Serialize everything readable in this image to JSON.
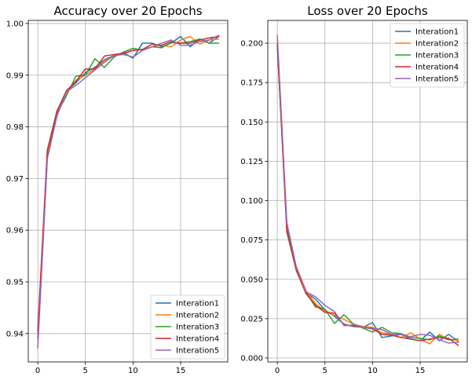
{
  "chart_data": [
    {
      "type": "line",
      "title": "Accuracy over 20 Epochs",
      "xlabel": "",
      "ylabel": "",
      "xlim": [
        -1,
        19.95
      ],
      "ylim": [
        0.9345,
        1.0006
      ],
      "xticks": [
        0,
        5,
        10,
        15
      ],
      "yticks": [
        0.94,
        0.95,
        0.96,
        0.97,
        0.98,
        0.99,
        1.0
      ],
      "ytick_labels": [
        "0.94",
        "0.95",
        "0.96",
        "0.97",
        "0.98",
        "0.99",
        "1.00"
      ],
      "grid": true,
      "legend_position": "lower-right",
      "x": [
        0,
        1,
        2,
        3,
        4,
        5,
        6,
        7,
        8,
        9,
        10,
        11,
        12,
        13,
        14,
        15,
        16,
        17,
        18,
        19
      ],
      "series": [
        {
          "name": "Interation1",
          "color": "#1f77b4",
          "values": [
            0.939,
            0.9745,
            0.983,
            0.9868,
            0.9885,
            0.9905,
            0.9915,
            0.993,
            0.9938,
            0.9943,
            0.9933,
            0.9962,
            0.9962,
            0.9955,
            0.9962,
            0.9975,
            0.9955,
            0.997,
            0.9962,
            0.9975
          ]
        },
        {
          "name": "Interation2",
          "color": "#ff7f0e",
          "values": [
            0.94,
            0.975,
            0.9828,
            0.9865,
            0.989,
            0.99,
            0.9912,
            0.9928,
            0.9937,
            0.9943,
            0.9948,
            0.995,
            0.9955,
            0.9958,
            0.9955,
            0.9968,
            0.9975,
            0.996,
            0.9968,
            0.997
          ]
        },
        {
          "name": "Interation3",
          "color": "#2ca02c",
          "values": [
            0.9395,
            0.974,
            0.9825,
            0.986,
            0.9898,
            0.99,
            0.9932,
            0.9915,
            0.9935,
            0.9945,
            0.9952,
            0.9948,
            0.9955,
            0.9953,
            0.9963,
            0.9962,
            0.9965,
            0.997,
            0.9962,
            0.9962
          ]
        },
        {
          "name": "Interation4",
          "color": "#d62728",
          "values": [
            0.9405,
            0.9755,
            0.983,
            0.987,
            0.9888,
            0.9912,
            0.9912,
            0.9937,
            0.994,
            0.9942,
            0.9948,
            0.995,
            0.996,
            0.9958,
            0.9965,
            0.9962,
            0.9962,
            0.9968,
            0.9972,
            0.9975
          ]
        },
        {
          "name": "Interation5",
          "color": "#9467bd",
          "values": [
            0.9372,
            0.9738,
            0.982,
            0.9868,
            0.988,
            0.9895,
            0.991,
            0.9925,
            0.9938,
            0.994,
            0.9935,
            0.9948,
            0.9955,
            0.9962,
            0.9968,
            0.9958,
            0.9958,
            0.9965,
            0.9968,
            0.9977
          ]
        }
      ]
    },
    {
      "type": "line",
      "title": "Loss over 20 Epochs",
      "xlabel": "",
      "ylabel": "",
      "xlim": [
        -1,
        19.95
      ],
      "ylim": [
        -0.0025,
        0.2145
      ],
      "xticks": [
        0,
        5,
        10,
        15
      ],
      "yticks": [
        0.0,
        0.025,
        0.05,
        0.075,
        0.1,
        0.125,
        0.15,
        0.175,
        0.2
      ],
      "ytick_labels": [
        "0.000",
        "0.025",
        "0.050",
        "0.075",
        "0.100",
        "0.125",
        "0.150",
        "0.175",
        "0.200"
      ],
      "grid": true,
      "legend_position": "upper-right",
      "x": [
        0,
        1,
        2,
        3,
        4,
        5,
        6,
        7,
        8,
        9,
        10,
        11,
        12,
        13,
        14,
        15,
        16,
        17,
        18,
        19
      ],
      "series": [
        {
          "name": "Interation1",
          "color": "#1f77b4",
          "values": [
            0.1985,
            0.083,
            0.0565,
            0.0415,
            0.0375,
            0.0305,
            0.0265,
            0.0215,
            0.02,
            0.0195,
            0.0225,
            0.013,
            0.014,
            0.015,
            0.012,
            0.011,
            0.0165,
            0.011,
            0.015,
            0.0105
          ]
        },
        {
          "name": "Interation2",
          "color": "#ff7f0e",
          "values": [
            0.202,
            0.082,
            0.058,
            0.043,
            0.0345,
            0.03,
            0.027,
            0.0245,
            0.0215,
            0.02,
            0.0195,
            0.016,
            0.015,
            0.013,
            0.016,
            0.012,
            0.009,
            0.015,
            0.012,
            0.011
          ]
        },
        {
          "name": "Interation3",
          "color": "#2ca02c",
          "values": [
            0.199,
            0.0825,
            0.0555,
            0.042,
            0.0325,
            0.031,
            0.022,
            0.0275,
            0.0215,
            0.019,
            0.0165,
            0.0195,
            0.016,
            0.0155,
            0.013,
            0.0125,
            0.0115,
            0.014,
            0.0115,
            0.012
          ]
        },
        {
          "name": "Interation4",
          "color": "#d62728",
          "values": [
            0.1995,
            0.08,
            0.0555,
            0.041,
            0.0335,
            0.029,
            0.0285,
            0.021,
            0.0205,
            0.0195,
            0.0185,
            0.015,
            0.0145,
            0.013,
            0.012,
            0.011,
            0.012,
            0.013,
            0.0125,
            0.008
          ]
        },
        {
          "name": "Interation5",
          "color": "#9467bd",
          "values": [
            0.205,
            0.086,
            0.0575,
            0.042,
            0.039,
            0.0335,
            0.0295,
            0.0205,
            0.021,
            0.0195,
            0.019,
            0.018,
            0.015,
            0.015,
            0.0135,
            0.015,
            0.0145,
            0.0115,
            0.0095,
            0.01
          ]
        }
      ]
    }
  ]
}
